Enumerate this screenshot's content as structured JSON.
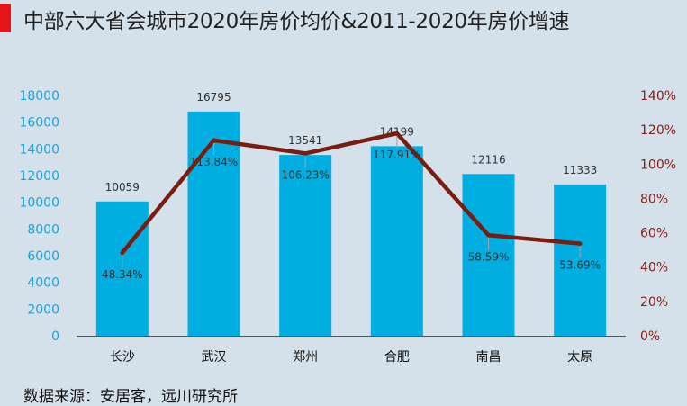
{
  "title": "中部六大省会城市2020年房价均价&2011-2020年房价增速",
  "source": "数据来源：安居客，远川研究所",
  "chart_data": {
    "type": "bar+line",
    "categories": [
      "长沙",
      "武汉",
      "郑州",
      "合肥",
      "南昌",
      "太原"
    ],
    "series": [
      {
        "type": "bar",
        "axis": "left",
        "values": [
          10059,
          16795,
          13541,
          14199,
          12116,
          11333
        ],
        "color": "#00aee2"
      },
      {
        "type": "line",
        "axis": "right",
        "values": [
          48.34,
          113.84,
          106.23,
          117.91,
          58.59,
          53.69
        ],
        "color": "#7a1c0e"
      }
    ],
    "bar_labels": [
      "10059",
      "16795",
      "13541",
      "14199",
      "12116",
      "11333"
    ],
    "line_labels": [
      "48.34%",
      "113.84%",
      "106.23%",
      "117.91%",
      "58.59%",
      "53.69%"
    ],
    "y_left": {
      "min": 0,
      "max": 18000,
      "step": 2000,
      "ticks": [
        "0",
        "2000",
        "4000",
        "6000",
        "8000",
        "10000",
        "12000",
        "14000",
        "16000",
        "18000"
      ]
    },
    "y_right": {
      "min": 0,
      "max": 140,
      "step": 20,
      "ticks": [
        "0%",
        "20%",
        "40%",
        "60%",
        "80%",
        "100%",
        "120%",
        "140%"
      ]
    },
    "grid": false,
    "legend": "none"
  }
}
